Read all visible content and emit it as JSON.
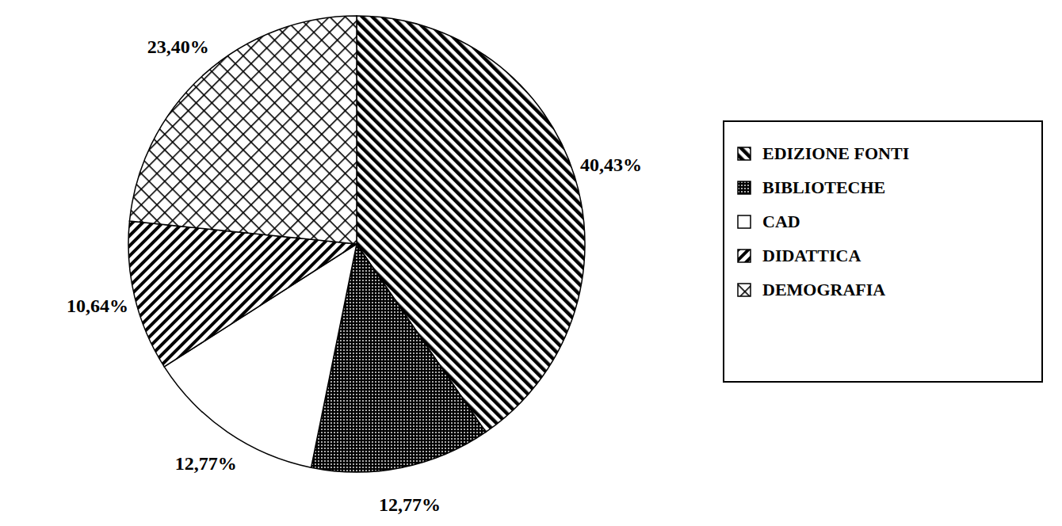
{
  "chart_data": {
    "type": "pie",
    "categories": [
      "EDIZIONE FONTI",
      "BIBLIOTECHE",
      "CAD",
      "DIDATTICA",
      "DEMOGRAFIA"
    ],
    "values": [
      40.43,
      12.77,
      12.77,
      10.64,
      23.4
    ],
    "value_labels": [
      "40,43%",
      "12,77%",
      "12,77%",
      "10,64%",
      "23,40%"
    ],
    "colors": [
      "#000000",
      "#000000",
      "#ffffff",
      "#000000",
      "#000000"
    ],
    "data_labels": true,
    "legend": "right"
  }
}
